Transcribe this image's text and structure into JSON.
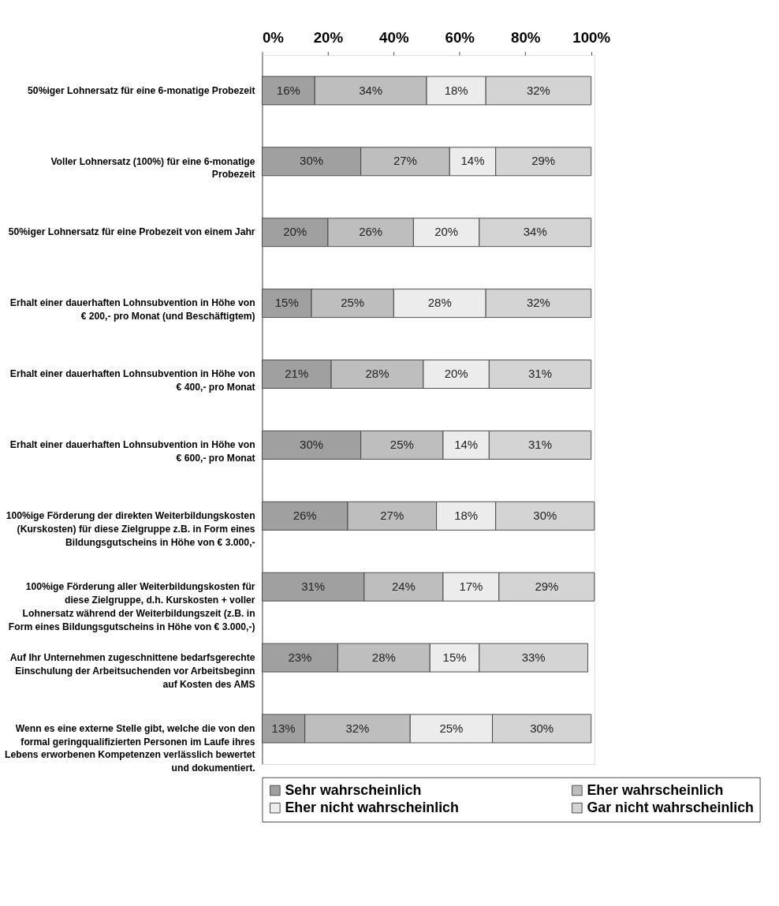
{
  "chart_data": {
    "type": "bar",
    "orientation": "horizontal",
    "stacked": true,
    "categories": [
      "50%iger Lohnersatz für eine 6-monatige Probezeit",
      "Voller Lohnersatz (100%) für eine 6-monatige Probezeit",
      "50%iger Lohnersatz für eine Probezeit von einem Jahr",
      "Erhalt einer dauerhaften Lohnsubvention in Höhe von € 200,- pro Monat (und Beschäftigtem)",
      "Erhalt einer dauerhaften Lohnsubvention in Höhe von € 400,- pro Monat",
      "Erhalt einer dauerhaften Lohnsubvention in Höhe von € 600,- pro Monat",
      "100%ige Förderung der direkten Weiterbildungskosten (Kurskosten) für diese Zielgruppe z.B. in Form eines Bildungsgutscheins in Höhe von € 3.000,-",
      "100%ige Förderung aller Weiterbildungskosten für diese Zielgruppe, d.h. Kurskosten + voller Lohnersatz während der Weiterbildungszeit (z.B. in Form eines Bildungsgutscheins in Höhe von € 3.000,-)",
      "Auf Ihr Unternehmen zugeschnittene bedarfsgerechte Einschulung der Arbeitsuchenden vor Arbeitsbeginn auf Kosten des AMS",
      "Wenn es eine externe Stelle gibt, welche die von den formal geringqualifizierten Personen im Laufe ihres Lebens erworbenen Kompetenzen verlässlich bewertet und dokumentiert."
    ],
    "series": [
      {
        "name": "Sehr wahrscheinlich",
        "color": "#a0a0a0",
        "values": [
          16,
          30,
          20,
          15,
          21,
          30,
          26,
          31,
          23,
          13
        ],
        "value_labels": [
          "16%",
          "30%",
          "20%",
          "15%",
          "21%",
          "30%",
          "26%",
          "31%",
          "23%",
          "13%"
        ]
      },
      {
        "name": "Eher wahrscheinlich",
        "color": "#bebebe",
        "values": [
          34,
          27,
          26,
          25,
          28,
          25,
          27,
          24,
          28,
          32
        ],
        "value_labels": [
          "34%",
          "27%",
          "26%",
          "25%",
          "28%",
          "25%",
          "27%",
          "24%",
          "28%",
          "32%"
        ]
      },
      {
        "name": "Eher nicht wahrscheinlich",
        "color": "#ececec",
        "values": [
          18,
          14,
          20,
          28,
          20,
          14,
          18,
          17,
          15,
          25
        ],
        "value_labels": [
          "18%",
          "14%",
          "20%",
          "28%",
          "20%",
          "14%",
          "18%",
          "17%",
          "15%",
          "25%"
        ]
      },
      {
        "name": "Gar nicht wahrscheinlich",
        "color": "#d4d4d4",
        "values": [
          32,
          29,
          34,
          32,
          31,
          31,
          30,
          29,
          33,
          30
        ],
        "value_labels": [
          "32%",
          "29%",
          "34%",
          "32%",
          "31%",
          "31%",
          "30%",
          "29%",
          "33%",
          "30%"
        ]
      }
    ],
    "xlim": [
      0,
      101
    ],
    "xticks": [
      {
        "value": 0,
        "label": "0%"
      },
      {
        "value": 20,
        "label": "20%"
      },
      {
        "value": 40,
        "label": "40%"
      },
      {
        "value": 60,
        "label": "60%"
      },
      {
        "value": 80,
        "label": "80%"
      },
      {
        "value": 100,
        "label": "100%"
      }
    ],
    "grid": false,
    "legend": "bottom"
  }
}
